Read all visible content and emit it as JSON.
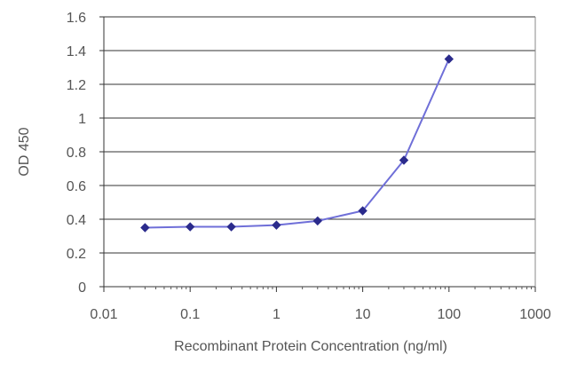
{
  "chart_data": {
    "type": "line",
    "title": "",
    "xlabel": "Recombinant Protein Concentration (ng/ml)",
    "ylabel": "OD 450",
    "x_scale": "log",
    "xlim": [
      0.01,
      1000
    ],
    "ylim": [
      0,
      1.6
    ],
    "x_ticks": [
      0.01,
      0.1,
      1,
      10,
      100,
      1000
    ],
    "x_tick_labels": [
      "0.01",
      "0.1",
      "1",
      "10",
      "100",
      "1000"
    ],
    "y_ticks": [
      0,
      0.2,
      0.4,
      0.6,
      0.8,
      1.0,
      1.2,
      1.4,
      1.6
    ],
    "y_tick_labels": [
      "0",
      "0.2",
      "0.4",
      "0.6",
      "0.8",
      "1",
      "1.2",
      "1.4",
      "1.6"
    ],
    "grid": "horizontal",
    "legend": "none",
    "series": [
      {
        "x": [
          0.03,
          0.1,
          0.3,
          1,
          3,
          10,
          30,
          100
        ],
        "y": [
          0.35,
          0.355,
          0.355,
          0.365,
          0.39,
          0.45,
          0.75,
          1.35
        ],
        "color": "#2b2b8c",
        "line_color": "#6f6fd8"
      }
    ]
  }
}
